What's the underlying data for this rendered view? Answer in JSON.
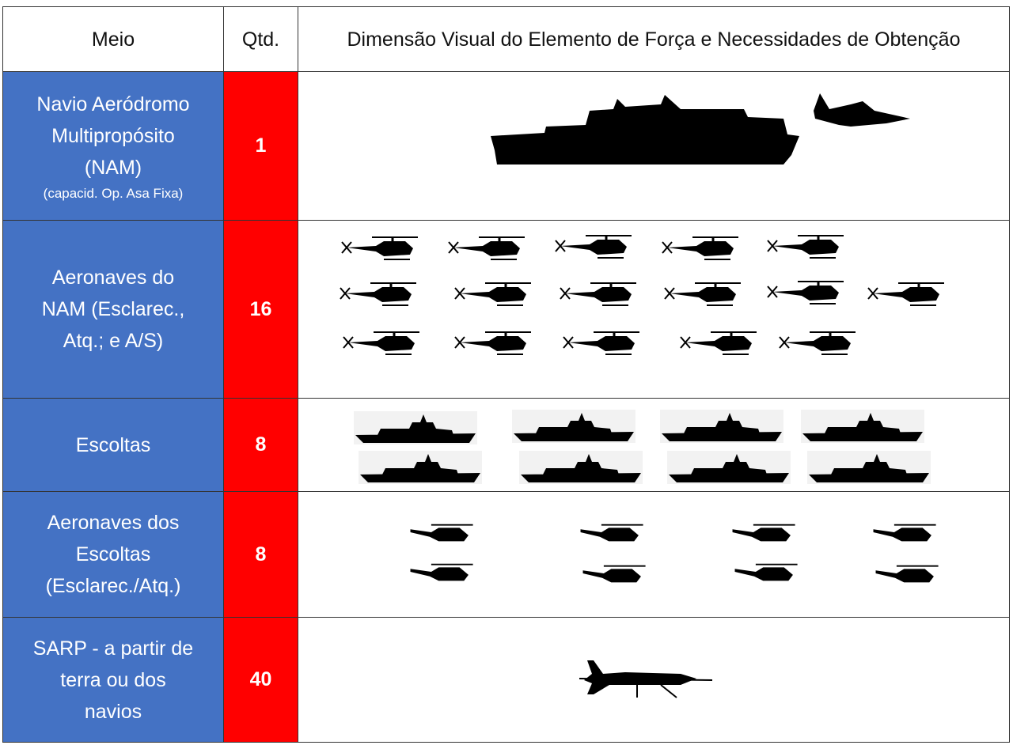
{
  "table": {
    "header": [
      "Meio",
      "Qtd.",
      "Dimensão Visual do Elemento de Força e Necessidades de Obtenção"
    ],
    "rows": [
      {
        "meio": "Navio Aeródromo\nMultipropósito\n(NAM)",
        "note": "(capacid. Op. Asa Fixa)",
        "qtd": 1
      },
      {
        "meio": "Aeronaves do\nNAM (Esclarec.,\nAtq.; e A/S)",
        "qtd": 16
      },
      {
        "meio": "Escoltas",
        "qtd": 8
      },
      {
        "meio": "Aeronaves dos\nEscoltas\n(Esclarec./Atq.)",
        "qtd": 8
      },
      {
        "meio": "SARP - a partir de\nterra ou dos\nnavios",
        "qtd": 40
      }
    ]
  }
}
